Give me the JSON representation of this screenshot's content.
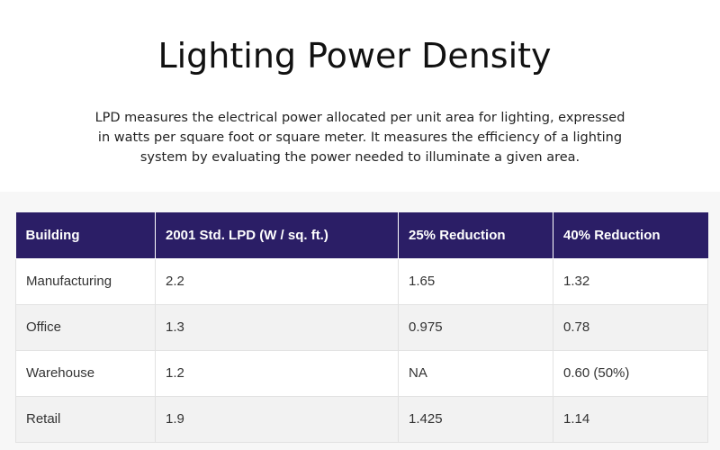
{
  "title": "Lighting Power Density",
  "description": "LPD measures the electrical power allocated per unit area for lighting, expressed in watts per square foot or square meter. It measures the efficiency of a lighting system by evaluating the power needed to illuminate a given area.",
  "table": {
    "headers": [
      "Building",
      "2001 Std. LPD (W / sq. ft.)",
      "25% Reduction",
      "40% Reduction"
    ],
    "rows": [
      [
        "Manufacturing",
        "2.2",
        "1.65",
        "1.32"
      ],
      [
        "Office",
        "1.3",
        "0.975",
        "0.78"
      ],
      [
        "Warehouse",
        "1.2",
        "NA",
        "0.60 (50%)"
      ],
      [
        "Retail",
        "1.9",
        "1.425",
        "1.14"
      ]
    ],
    "colors": {
      "header_bg": "#2b1e66",
      "header_text": "#ffffff",
      "row_alt_bg": "#f2f2f2"
    }
  }
}
